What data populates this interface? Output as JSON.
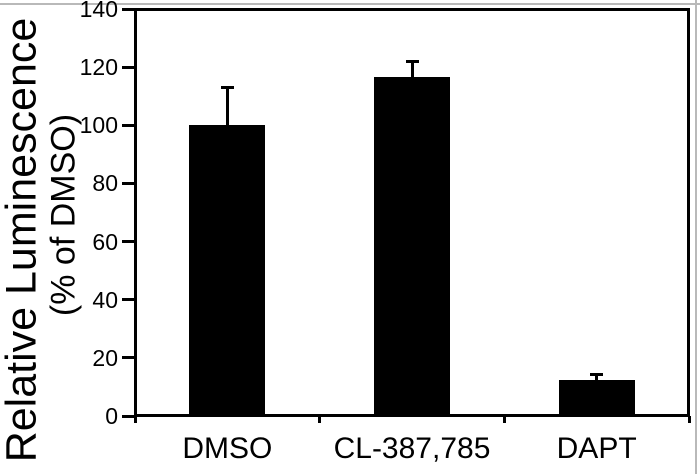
{
  "chart_data": {
    "type": "bar",
    "title": "",
    "ylabel": "Relative Luminescence",
    "ylabel_sub": "(% of DMSO)",
    "xlabel": "",
    "categories": [
      "DMSO",
      "CL-387,785",
      "DAPT"
    ],
    "values": [
      100,
      116.5,
      12.5
    ],
    "errors_plus": [
      13,
      5.5,
      1.8
    ],
    "y_ticks": [
      0,
      20,
      40,
      60,
      80,
      100,
      120,
      140
    ],
    "ylim": [
      0,
      140
    ],
    "bar_color": "#000000",
    "background_color": "#ffffff",
    "frame_color": "#000000",
    "grid": false,
    "legend_position": "none"
  }
}
